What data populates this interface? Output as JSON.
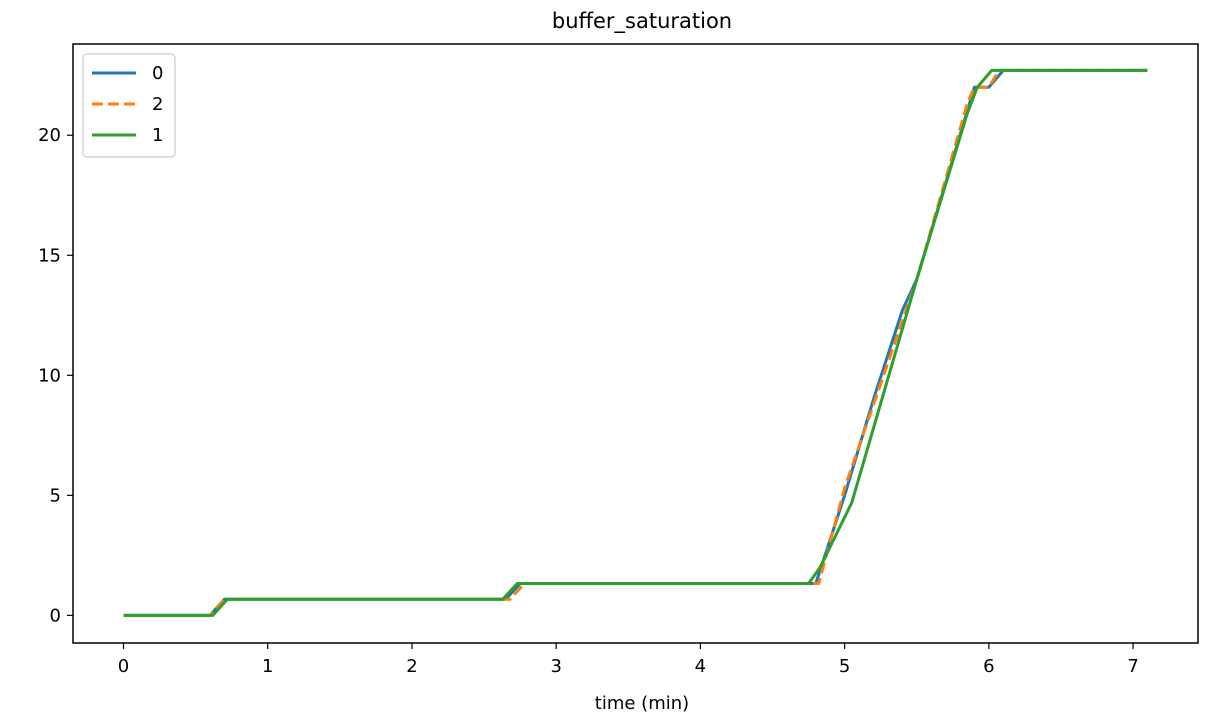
{
  "chart_data": {
    "type": "line",
    "title": "buffer_saturation",
    "xlabel": "time (min)",
    "ylabel": "",
    "xlim": [
      -0.35,
      7.45
    ],
    "ylim": [
      -1.15,
      23.8
    ],
    "xticks": [
      0,
      1,
      2,
      3,
      4,
      5,
      6,
      7
    ],
    "yticks": [
      0,
      5,
      10,
      15,
      20
    ],
    "grid": false,
    "legend_position": "top-left",
    "series": [
      {
        "name": "0",
        "color": "#1f77b4",
        "dash": "solid",
        "points": [
          [
            0.0,
            0.0
          ],
          [
            0.6,
            0.0
          ],
          [
            0.7,
            0.67
          ],
          [
            2.65,
            0.67
          ],
          [
            2.75,
            1.33
          ],
          [
            4.75,
            1.33
          ],
          [
            4.8,
            1.33
          ],
          [
            5.0,
            5.0
          ],
          [
            5.2,
            9.0
          ],
          [
            5.4,
            12.7
          ],
          [
            5.5,
            14.0
          ],
          [
            5.6,
            16.0
          ],
          [
            5.85,
            21.0
          ],
          [
            5.9,
            22.0
          ],
          [
            6.0,
            22.0
          ],
          [
            6.1,
            22.7
          ],
          [
            7.1,
            22.7
          ]
        ]
      },
      {
        "name": "2",
        "color": "#ff7f0e",
        "dash": "dashed",
        "points": [
          [
            0.0,
            0.0
          ],
          [
            0.6,
            0.0
          ],
          [
            0.7,
            0.67
          ],
          [
            2.68,
            0.67
          ],
          [
            2.78,
            1.33
          ],
          [
            4.82,
            1.33
          ],
          [
            5.0,
            5.3
          ],
          [
            5.5,
            14.0
          ],
          [
            5.85,
            21.3
          ],
          [
            5.9,
            22.0
          ],
          [
            6.0,
            22.0
          ],
          [
            6.07,
            22.7
          ],
          [
            7.1,
            22.7
          ]
        ]
      },
      {
        "name": "1",
        "color": "#2ca02c",
        "dash": "solid",
        "points": [
          [
            0.0,
            0.0
          ],
          [
            0.62,
            0.0
          ],
          [
            0.72,
            0.67
          ],
          [
            2.63,
            0.67
          ],
          [
            2.73,
            1.33
          ],
          [
            4.75,
            1.33
          ],
          [
            4.83,
            2.0
          ],
          [
            5.05,
            4.7
          ],
          [
            5.5,
            14.0
          ],
          [
            5.85,
            20.9
          ],
          [
            5.92,
            22.0
          ],
          [
            6.02,
            22.7
          ],
          [
            7.1,
            22.7
          ]
        ]
      }
    ]
  }
}
